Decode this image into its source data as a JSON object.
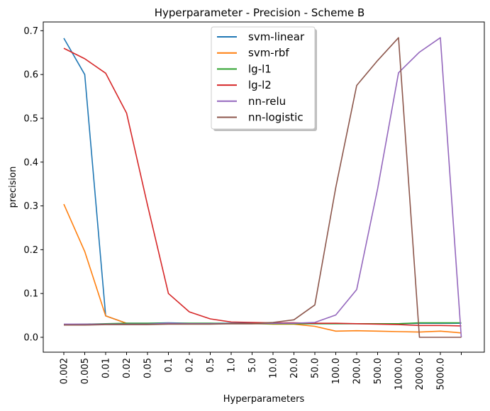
{
  "chart_data": {
    "type": "line",
    "title": "Hyperparameter - Precision - Scheme B",
    "xlabel": "Hyperparameters",
    "ylabel": "precision",
    "categories": [
      "0.002",
      "0.005",
      "0.01",
      "0.02",
      "0.05",
      "0.1",
      "0.2",
      "0.5",
      "1.0",
      "5.0",
      "10.0",
      "20.0",
      "50.0",
      "100.0",
      "200.0",
      "500.0",
      "1000.0",
      "2000.0",
      "5000.0",
      ""
    ],
    "ylim": [
      -0.034,
      0.72
    ],
    "yticks": [
      0.0,
      0.1,
      0.2,
      0.3,
      0.4,
      0.5,
      0.6,
      0.7
    ],
    "ytick_labels": [
      "0.0",
      "0.1",
      "0.2",
      "0.3",
      "0.4",
      "0.5",
      "0.6",
      "0.7"
    ],
    "grid": false,
    "legend_position": "upper-center",
    "series": [
      {
        "name": "svm-linear",
        "color": "#1f77b4",
        "values": [
          0.683,
          0.6,
          0.049,
          0.032,
          0.032,
          0.033,
          0.032,
          0.032,
          0.032,
          0.032,
          0.031,
          0.031,
          0.031,
          0.031,
          0.031,
          0.031,
          0.031,
          0.032,
          0.032,
          0.032
        ]
      },
      {
        "name": "svm-rbf",
        "color": "#ff7f0e",
        "values": [
          0.304,
          0.196,
          0.049,
          0.032,
          0.031,
          0.032,
          0.031,
          0.031,
          0.031,
          0.031,
          0.03,
          0.03,
          0.025,
          0.014,
          0.015,
          0.014,
          0.013,
          0.012,
          0.014,
          0.01
        ]
      },
      {
        "name": "lg-l1",
        "color": "#2ca02c",
        "values": [
          0.029,
          0.03,
          0.031,
          0.032,
          0.032,
          0.032,
          0.032,
          0.032,
          0.031,
          0.031,
          0.031,
          0.031,
          0.031,
          0.031,
          0.031,
          0.031,
          0.031,
          0.033,
          0.033,
          0.033
        ]
      },
      {
        "name": "lg-l2",
        "color": "#d62728",
        "values": [
          0.66,
          0.636,
          0.603,
          0.512,
          0.302,
          0.1,
          0.058,
          0.042,
          0.035,
          0.034,
          0.033,
          0.033,
          0.032,
          0.032,
          0.031,
          0.03,
          0.029,
          0.027,
          0.027,
          0.026
        ]
      },
      {
        "name": "nn-relu",
        "color": "#9467bd",
        "values": [
          0.03,
          0.03,
          0.03,
          0.03,
          0.03,
          0.032,
          0.031,
          0.031,
          0.031,
          0.031,
          0.032,
          0.032,
          0.034,
          0.051,
          0.109,
          0.339,
          0.604,
          0.651,
          0.684,
          0.0
        ]
      },
      {
        "name": "nn-logistic",
        "color": "#8c564b",
        "values": [
          0.028,
          0.028,
          0.029,
          0.029,
          0.029,
          0.03,
          0.03,
          0.03,
          0.031,
          0.031,
          0.034,
          0.04,
          0.074,
          0.342,
          0.575,
          0.632,
          0.684,
          0.0,
          0.0,
          0.0
        ]
      }
    ]
  }
}
